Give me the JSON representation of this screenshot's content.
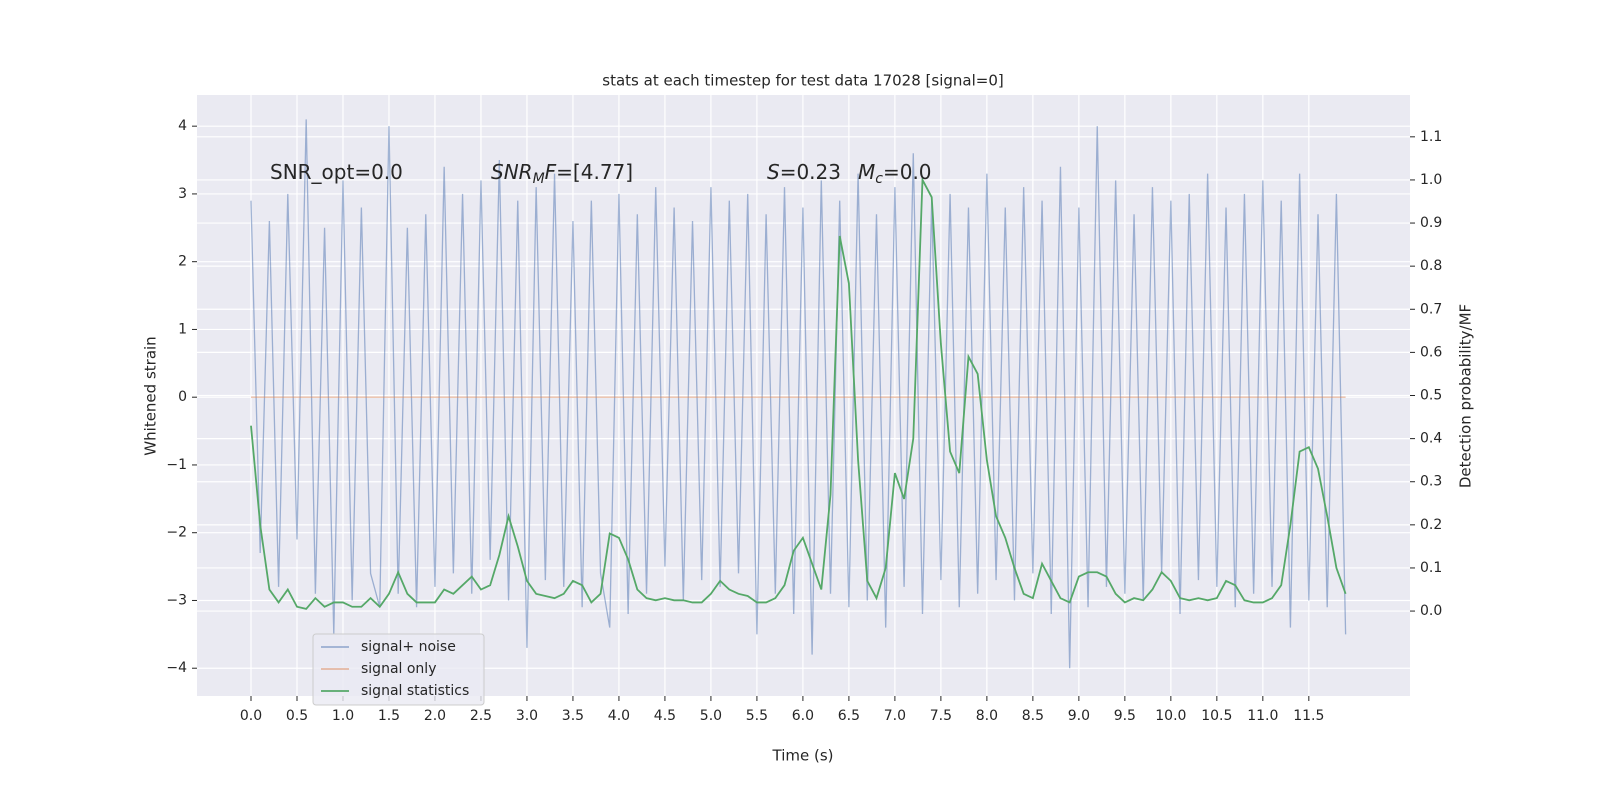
{
  "chart_data": {
    "type": "line",
    "title": "stats at each timestep for test data 17028 [signal=0]",
    "xlabel": "Time (s)",
    "ylabel": "Whitened strain",
    "y2label": "Detection probability/MF",
    "annotations": [
      {
        "parts": [
          {
            "text": "SNR_opt=0.0"
          }
        ]
      },
      {
        "parts": [
          {
            "text": "SNR",
            "style": "italic"
          },
          {
            "text": "M",
            "style": "italic",
            "sub": true
          },
          {
            "text": "F",
            "style": "italic"
          },
          {
            "text": "=[4.77]"
          }
        ]
      },
      {
        "parts": [
          {
            "text": "S",
            "style": "italic"
          },
          {
            "text": "=0.23"
          }
        ]
      },
      {
        "parts": [
          {
            "text": "M",
            "style": "italic"
          },
          {
            "text": "c",
            "style": "italic",
            "sub": true
          },
          {
            "text": "=0.0"
          }
        ]
      }
    ],
    "x": [
      0,
      0.1,
      0.2,
      0.3,
      0.4,
      0.5,
      0.6,
      0.7,
      0.8,
      0.9,
      1,
      1.1,
      1.2,
      1.3,
      1.4,
      1.5,
      1.6,
      1.7,
      1.8,
      1.9,
      2,
      2.1,
      2.2,
      2.3,
      2.4,
      2.5,
      2.6,
      2.7,
      2.8,
      2.9,
      3,
      3.1,
      3.2,
      3.3,
      3.4,
      3.5,
      3.6,
      3.7,
      3.8,
      3.9,
      4,
      4.1,
      4.2,
      4.3,
      4.4,
      4.5,
      4.6,
      4.7,
      4.8,
      4.9,
      5,
      5.1,
      5.2,
      5.3,
      5.4,
      5.5,
      5.6,
      5.7,
      5.8,
      5.9,
      6,
      6.1,
      6.2,
      6.3,
      6.4,
      6.5,
      6.6,
      6.7,
      6.8,
      6.9,
      7,
      7.1,
      7.2,
      7.3,
      7.4,
      7.5,
      7.6,
      7.7,
      7.8,
      7.9,
      8,
      8.1,
      8.2,
      8.3,
      8.4,
      8.5,
      8.6,
      8.7,
      8.8,
      8.9,
      9,
      9.1,
      9.2,
      9.3,
      9.4,
      9.5,
      9.6,
      9.7,
      9.8,
      9.9,
      10,
      10.1,
      10.2,
      10.3,
      10.4,
      10.5,
      10.6,
      10.7,
      10.8,
      10.9,
      11,
      11.1,
      11.2,
      11.3,
      11.4,
      11.5,
      11.6,
      11.7,
      11.8,
      11.9
    ],
    "series": [
      {
        "name": "signal+ noise",
        "color": "#4c72b0",
        "opacity": 0.5,
        "values": [
          2.9,
          -2.3,
          2.6,
          -2.8,
          3.0,
          -2.1,
          4.1,
          -2.9,
          2.5,
          -3.5,
          3.2,
          -3.0,
          2.8,
          -2.6,
          -3.1,
          4.0,
          -2.9,
          2.5,
          -3.1,
          2.7,
          -2.8,
          3.4,
          -2.6,
          3.0,
          -2.9,
          3.2,
          -2.4,
          3.5,
          -3.0,
          2.9,
          -3.7,
          3.1,
          -2.7,
          3.3,
          -2.8,
          2.6,
          -3.1,
          2.9,
          -2.6,
          -3.4,
          3.0,
          -3.2,
          2.7,
          -2.9,
          3.1,
          -2.5,
          2.8,
          -3.0,
          2.6,
          -2.7,
          3.1,
          -2.8,
          2.9,
          -2.6,
          3.0,
          -3.5,
          2.7,
          -2.9,
          3.1,
          -3.2,
          2.8,
          -3.8,
          3.2,
          -2.9,
          2.9,
          -3.1,
          3.3,
          -3.0,
          2.7,
          -3.4,
          3.1,
          -2.8,
          3.6,
          -3.2,
          2.9,
          -2.7,
          3.0,
          -3.1,
          2.8,
          -2.9,
          3.3,
          -2.7,
          2.8,
          -3.0,
          3.1,
          -2.6,
          2.9,
          -3.2,
          3.4,
          -4.0,
          2.8,
          -3.1,
          4.0,
          -2.8,
          3.2,
          -2.9,
          2.7,
          -3.0,
          3.1,
          -2.6,
          2.9,
          -3.2,
          3.0,
          -2.7,
          3.3,
          -2.8,
          2.8,
          -3.1,
          3.0,
          -2.9,
          3.2,
          -2.8,
          2.9,
          -3.4,
          3.3,
          -3.0,
          2.7,
          -3.1,
          3.0,
          -3.5
        ]
      },
      {
        "name": "signal only",
        "color": "#dd8452",
        "opacity": 0.5,
        "values": [
          0,
          0,
          0,
          0,
          0,
          0,
          0,
          0,
          0,
          0,
          0,
          0,
          0,
          0,
          0,
          0,
          0,
          0,
          0,
          0,
          0,
          0,
          0,
          0,
          0,
          0,
          0,
          0,
          0,
          0,
          0,
          0,
          0,
          0,
          0,
          0,
          0,
          0,
          0,
          0,
          0,
          0,
          0,
          0,
          0,
          0,
          0,
          0,
          0,
          0,
          0,
          0,
          0,
          0,
          0,
          0,
          0,
          0,
          0,
          0,
          0,
          0,
          0,
          0,
          0,
          0,
          0,
          0,
          0,
          0,
          0,
          0,
          0,
          0,
          0,
          0,
          0,
          0,
          0,
          0,
          0,
          0,
          0,
          0,
          0,
          0,
          0,
          0,
          0,
          0,
          0,
          0,
          0,
          0,
          0,
          0,
          0,
          0,
          0,
          0,
          0,
          0,
          0,
          0,
          0,
          0,
          0,
          0,
          0,
          0,
          0,
          0,
          0,
          0,
          0,
          0,
          0,
          0,
          0,
          0
        ]
      },
      {
        "name": "signal statistics",
        "color": "#55a868",
        "opacity": 1,
        "axis": "y2",
        "values": [
          0.43,
          0.2,
          0.05,
          0.02,
          0.05,
          0.01,
          0.005,
          0.03,
          0.01,
          0.02,
          0.02,
          0.01,
          0.01,
          0.03,
          0.01,
          0.04,
          0.09,
          0.04,
          0.02,
          0.02,
          0.02,
          0.05,
          0.04,
          0.06,
          0.08,
          0.05,
          0.06,
          0.13,
          0.22,
          0.15,
          0.07,
          0.04,
          0.035,
          0.03,
          0.04,
          0.07,
          0.06,
          0.02,
          0.04,
          0.18,
          0.17,
          0.12,
          0.05,
          0.03,
          0.025,
          0.03,
          0.025,
          0.025,
          0.02,
          0.02,
          0.04,
          0.07,
          0.05,
          0.04,
          0.035,
          0.02,
          0.02,
          0.03,
          0.06,
          0.14,
          0.17,
          0.11,
          0.05,
          0.27,
          0.87,
          0.76,
          0.35,
          0.07,
          0.03,
          0.1,
          0.32,
          0.26,
          0.4,
          1.0,
          0.96,
          0.62,
          0.37,
          0.32,
          0.59,
          0.55,
          0.35,
          0.22,
          0.17,
          0.1,
          0.04,
          0.03,
          0.11,
          0.07,
          0.03,
          0.02,
          0.08,
          0.09,
          0.09,
          0.08,
          0.04,
          0.02,
          0.03,
          0.025,
          0.05,
          0.09,
          0.07,
          0.03,
          0.025,
          0.03,
          0.025,
          0.03,
          0.07,
          0.06,
          0.025,
          0.02,
          0.02,
          0.03,
          0.06,
          0.2,
          0.37,
          0.38,
          0.33,
          0.22,
          0.1,
          0.04
        ]
      }
    ],
    "xlim": [
      -0.587,
      12.6
    ],
    "xticks": [
      {
        "value": 0,
        "label": "0.0"
      },
      0.5,
      {
        "value": 1,
        "label": "1.0"
      },
      1.5,
      {
        "value": 2,
        "label": "2.0"
      },
      2.5,
      {
        "value": 3,
        "label": "3.0"
      },
      3.5,
      {
        "value": 4,
        "label": "4.0"
      },
      4.5,
      {
        "value": 5,
        "label": "5.0"
      },
      5.5,
      {
        "value": 6,
        "label": "6.0"
      },
      6.5,
      {
        "value": 7,
        "label": "7.0"
      },
      7.5,
      {
        "value": 8,
        "label": "8.0"
      },
      8.5,
      {
        "value": 9,
        "label": "9.0"
      },
      9.5,
      {
        "value": 10,
        "label": "10.0"
      },
      10.5,
      {
        "value": 11,
        "label": "11.0"
      },
      11.5
    ],
    "ylim": [
      -4.41,
      4.46
    ],
    "yticks": [
      {
        "value": -4,
        "label": "−4"
      },
      {
        "value": -3,
        "label": "−3"
      },
      {
        "value": -2,
        "label": "−2"
      },
      {
        "value": -1,
        "label": "−1"
      },
      0,
      1,
      2,
      3,
      4
    ],
    "y2lim": [
      -0.197,
      1.197
    ],
    "y2ticks": [
      {
        "value": 0,
        "label": "0.0"
      },
      0.1,
      0.2,
      0.3,
      0.4,
      0.5,
      0.6,
      0.7,
      0.8,
      0.9,
      {
        "value": 1,
        "label": "1.0"
      },
      1.1
    ],
    "grid": true,
    "legend": "lower left"
  }
}
